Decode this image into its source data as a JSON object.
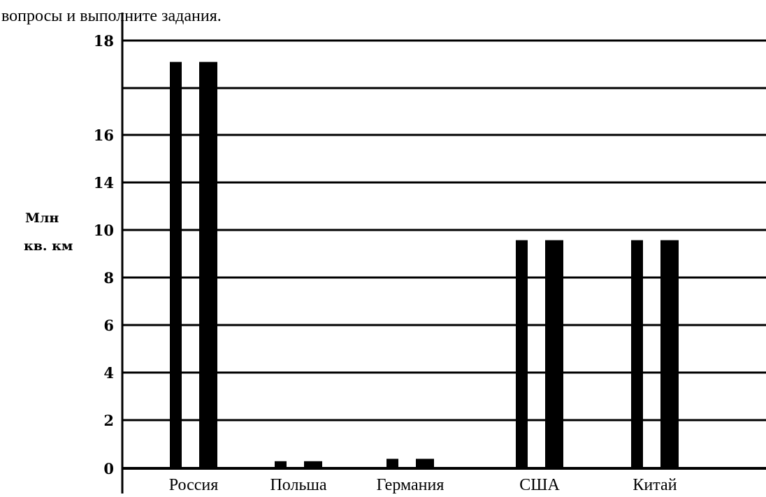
{
  "header_text": "вопросы и выполните задания.",
  "chart_data": {
    "type": "bar",
    "title": "",
    "xlabel": "",
    "ylabel": [
      "Млн",
      "кв. км"
    ],
    "categories": [
      "Россия",
      "Польша",
      "Германия",
      "США",
      "Китай"
    ],
    "values": [
      17.1,
      0.3,
      0.4,
      9.6,
      9.6
    ],
    "y_ticks": [
      "0",
      "2",
      "4",
      "6",
      "8",
      "10",
      "14",
      "16",
      "18"
    ],
    "ylim": [
      0,
      18
    ],
    "grid": true,
    "legend": "none",
    "colors": {
      "bar": "#000000",
      "grid": "#000000",
      "background": "#ffffff"
    }
  }
}
